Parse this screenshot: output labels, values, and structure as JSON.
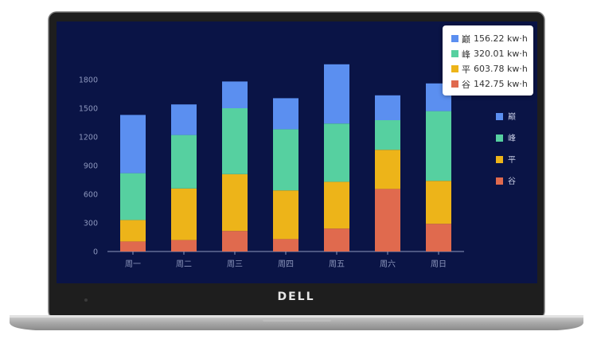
{
  "device": {
    "brand": "DELL"
  },
  "chart_data": {
    "type": "bar",
    "stacked": true,
    "categories": [
      "周一",
      "周二",
      "周三",
      "周四",
      "周五",
      "周六",
      "周日"
    ],
    "yticks": [
      0,
      300,
      600,
      900,
      1200,
      1500,
      1800
    ],
    "ylim": [
      0,
      1950
    ],
    "grid": false,
    "legend_position": "right",
    "series": [
      {
        "name": "谷",
        "color": "#e06a4e",
        "values": [
          105,
          120,
          215,
          130,
          240,
          655,
          290
        ]
      },
      {
        "name": "平",
        "color": "#edb419",
        "values": [
          225,
          540,
          595,
          510,
          490,
          410,
          450
        ]
      },
      {
        "name": "峰",
        "color": "#56d0a0",
        "values": [
          490,
          560,
          690,
          640,
          610,
          310,
          730
        ]
      },
      {
        "name": "巅",
        "color": "#5b8ff0",
        "values": [
          610,
          320,
          280,
          325,
          620,
          260,
          290
        ]
      }
    ]
  },
  "tooltip": {
    "items": [
      {
        "name": "巅",
        "value": "156.22 kw·h",
        "color": "#5b8ff0"
      },
      {
        "name": "峰",
        "value": "320.01 kw·h",
        "color": "#56d0a0"
      },
      {
        "name": "平",
        "value": "603.78 kw·h",
        "color": "#edb419"
      },
      {
        "name": "谷",
        "value": "142.75 kw·h",
        "color": "#e06a4e"
      }
    ]
  }
}
